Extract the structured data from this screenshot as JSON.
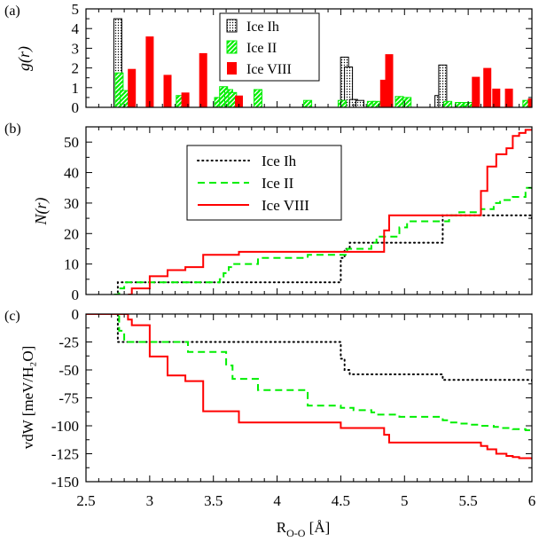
{
  "figure": {
    "xlabel_main": "R",
    "xlabel_sub": "O-O",
    "xlabel_unit": " [Å]",
    "x_ticks": [
      "2.5",
      "3",
      "3.5",
      "4",
      "4.5",
      "5",
      "5.5",
      "6"
    ]
  },
  "colors": {
    "ice_ih": "#000000",
    "ice_ii": "#00ee00",
    "ice_viii": "#ff0000",
    "axis": "#000000"
  },
  "chart_data": [
    {
      "panel_label": "(a)",
      "type": "bar",
      "ylabel": "g(r)",
      "xlim": [
        2.5,
        6.0
      ],
      "ylim": [
        0,
        5
      ],
      "y_ticks": [
        "0",
        "1",
        "2",
        "3",
        "4",
        "5"
      ],
      "legend": {
        "position": "top-center",
        "entries": [
          "Ice Ih",
          "Ice II",
          "Ice VIII"
        ]
      },
      "series": [
        {
          "name": "Ice Ih",
          "pattern": "dotted-hatch",
          "bars": [
            [
              2.75,
              4.5
            ],
            [
              4.53,
              2.55
            ],
            [
              4.56,
              2.05
            ],
            [
              4.6,
              0.4
            ],
            [
              4.65,
              0.35
            ],
            [
              5.27,
              0.6
            ],
            [
              5.3,
              2.15
            ]
          ]
        },
        {
          "name": "Ice II",
          "pattern": "diagonal-hatch",
          "bars": [
            [
              2.76,
              1.75
            ],
            [
              2.8,
              0.85
            ],
            [
              3.24,
              0.6
            ],
            [
              3.54,
              0.5
            ],
            [
              3.58,
              1.05
            ],
            [
              3.62,
              0.9
            ],
            [
              3.65,
              0.75
            ],
            [
              3.85,
              0.9
            ],
            [
              4.24,
              0.35
            ],
            [
              4.51,
              0.35
            ],
            [
              4.74,
              0.3
            ],
            [
              4.78,
              0.3
            ],
            [
              4.96,
              0.55
            ],
            [
              5.02,
              0.5
            ],
            [
              5.34,
              0.3
            ],
            [
              5.43,
              0.25
            ],
            [
              5.5,
              0.25
            ],
            [
              5.96,
              0.35
            ]
          ]
        },
        {
          "name": "Ice VIII",
          "pattern": "solid",
          "bars": [
            [
              2.86,
              1.95
            ],
            [
              3.0,
              3.6
            ],
            [
              3.14,
              1.65
            ],
            [
              3.28,
              0.75
            ],
            [
              3.42,
              2.75
            ],
            [
              3.7,
              0.6
            ],
            [
              4.84,
              1.4
            ],
            [
              4.88,
              2.7
            ],
            [
              5.56,
              1.55
            ],
            [
              5.65,
              2.0
            ],
            [
              5.72,
              0.95
            ],
            [
              5.82,
              0.95
            ],
            [
              6.0,
              0.45
            ]
          ]
        }
      ]
    },
    {
      "panel_label": "(b)",
      "type": "line",
      "ylabel": "N(r)",
      "xlim": [
        2.5,
        6.0
      ],
      "ylim": [
        0,
        55
      ],
      "y_ticks": [
        "0",
        "10",
        "20",
        "30",
        "40",
        "50"
      ],
      "legend": {
        "position": "top-center",
        "entries": [
          "Ice Ih",
          "Ice II",
          "Ice VIII"
        ]
      },
      "series": [
        {
          "name": "Ice Ih",
          "style": "dotted",
          "x": [
            2.73,
            2.75,
            4.49,
            4.5,
            4.53,
            4.57,
            4.63,
            5.27,
            5.3,
            6.0
          ],
          "y": [
            0,
            4,
            4,
            12,
            15,
            17,
            17,
            17,
            26,
            25
          ]
        },
        {
          "name": "Ice II",
          "style": "dashed",
          "x": [
            2.72,
            2.76,
            2.8,
            3.23,
            3.55,
            3.58,
            3.62,
            3.65,
            3.85,
            4.24,
            4.5,
            4.55,
            4.74,
            4.78,
            4.96,
            5.02,
            5.3,
            5.35,
            5.43,
            5.5,
            5.6,
            5.7,
            5.75,
            5.85,
            5.95,
            6.0
          ],
          "y": [
            0,
            2,
            4,
            4,
            5,
            7,
            9,
            10,
            12,
            13,
            13,
            15,
            17,
            19,
            22,
            24,
            24,
            26,
            27,
            27,
            28,
            30,
            31,
            32,
            35,
            34
          ]
        },
        {
          "name": "Ice VIII",
          "style": "solid",
          "x": [
            2.83,
            2.86,
            3.0,
            3.14,
            3.28,
            3.42,
            3.7,
            4.49,
            4.84,
            4.88,
            5.56,
            5.6,
            5.65,
            5.72,
            5.8,
            5.85,
            5.9,
            5.95,
            6.0
          ],
          "y": [
            0,
            2,
            6,
            8,
            9,
            13,
            14,
            14,
            21,
            26,
            26,
            34,
            42,
            46,
            48,
            52,
            53,
            54,
            54
          ]
        }
      ]
    },
    {
      "panel_label": "(c)",
      "type": "line",
      "ylabel": "vdW [meV/H₂O]",
      "xlim": [
        2.5,
        6.0
      ],
      "ylim": [
        -150,
        0
      ],
      "y_ticks": [
        "0",
        "-25",
        "-50",
        "-75",
        "-100",
        "-125",
        "-150"
      ],
      "series": [
        {
          "name": "Ice Ih",
          "style": "dotted",
          "x": [
            2.5,
            2.73,
            2.75,
            4.49,
            4.5,
            4.53,
            4.57,
            5.27,
            5.3,
            6.0
          ],
          "y": [
            0,
            0,
            -25,
            -25,
            -40,
            -50,
            -54,
            -54,
            -59,
            -60
          ]
        },
        {
          "name": "Ice II",
          "style": "dashed",
          "x": [
            2.5,
            2.7,
            2.76,
            2.8,
            3.23,
            3.3,
            3.55,
            3.6,
            3.65,
            3.85,
            4.24,
            4.5,
            4.6,
            4.74,
            4.78,
            4.96,
            5.02,
            5.3,
            5.35,
            5.43,
            5.5,
            5.6,
            5.7,
            5.75,
            5.85,
            5.95,
            6.0
          ],
          "y": [
            0,
            0,
            -15,
            -25,
            -25,
            -34,
            -34,
            -46,
            -58,
            -68,
            -82,
            -84,
            -86,
            -88,
            -90,
            -92,
            -92,
            -95,
            -97,
            -98,
            -99,
            -100,
            -101,
            -102,
            -103,
            -104,
            -104
          ]
        },
        {
          "name": "Ice VIII",
          "style": "solid",
          "x": [
            2.5,
            2.8,
            2.83,
            2.86,
            2.9,
            3.0,
            3.1,
            3.14,
            3.28,
            3.42,
            3.7,
            4.49,
            4.5,
            4.84,
            4.88,
            5.56,
            5.6,
            5.65,
            5.72,
            5.8,
            5.85,
            5.9,
            6.0
          ],
          "y": [
            0,
            0,
            -5,
            -10,
            -10,
            -38,
            -38,
            -55,
            -60,
            -87,
            -97,
            -97,
            -102,
            -108,
            -115,
            -115,
            -118,
            -121,
            -125,
            -127,
            -128,
            -129,
            -130
          ]
        }
      ]
    }
  ]
}
